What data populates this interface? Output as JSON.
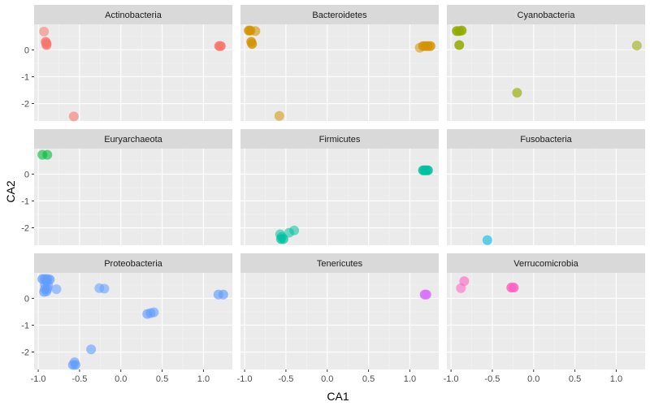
{
  "chart_data": {
    "type": "scatter",
    "facets": true,
    "xlabel": "CA1",
    "ylabel": "CA2",
    "xlim": [
      -1.05,
      1.35
    ],
    "ylim": [
      -2.65,
      0.95
    ],
    "x_ticks": [
      -1.0,
      -0.5,
      0.0,
      0.5,
      1.0
    ],
    "x_tick_labels": [
      "-1.0",
      "-0.5",
      "0.0",
      "0.5",
      "1.0"
    ],
    "y_ticks": [
      -2,
      -1,
      0
    ],
    "y_tick_labels": [
      "-2",
      "-1",
      "0"
    ],
    "grid": true,
    "legend": "none",
    "panels": [
      {
        "name": "Actinobacteria",
        "color": "#F8766D",
        "points": [
          {
            "x": -0.93,
            "y": 0.68,
            "alpha": 0.55
          },
          {
            "x": -0.91,
            "y": 0.3,
            "alpha": 0.8
          },
          {
            "x": -0.9,
            "y": 0.24,
            "alpha": 0.8
          },
          {
            "x": -0.9,
            "y": 0.18,
            "alpha": 0.8
          },
          {
            "x": -0.57,
            "y": -2.48,
            "alpha": 0.6
          },
          {
            "x": 1.19,
            "y": 0.14,
            "alpha": 0.85
          },
          {
            "x": 1.21,
            "y": 0.14,
            "alpha": 0.85
          }
        ]
      },
      {
        "name": "Bacteroidetes",
        "color": "#D39200",
        "points": [
          {
            "x": -0.95,
            "y": 0.72,
            "alpha": 0.8
          },
          {
            "x": -0.93,
            "y": 0.72,
            "alpha": 0.8
          },
          {
            "x": -0.87,
            "y": 0.7,
            "alpha": 0.6
          },
          {
            "x": -0.92,
            "y": 0.3,
            "alpha": 0.8
          },
          {
            "x": -0.91,
            "y": 0.22,
            "alpha": 0.8
          },
          {
            "x": -0.58,
            "y": -2.46,
            "alpha": 0.55
          },
          {
            "x": 1.12,
            "y": 0.08,
            "alpha": 0.55
          },
          {
            "x": 1.16,
            "y": 0.14,
            "alpha": 0.8
          },
          {
            "x": 1.19,
            "y": 0.14,
            "alpha": 0.8
          },
          {
            "x": 1.22,
            "y": 0.14,
            "alpha": 0.8
          },
          {
            "x": 1.25,
            "y": 0.14,
            "alpha": 0.8
          }
        ]
      },
      {
        "name": "Cyanobacteria",
        "color": "#93AA00",
        "points": [
          {
            "x": -0.93,
            "y": 0.7,
            "alpha": 0.85
          },
          {
            "x": -0.9,
            "y": 0.7,
            "alpha": 0.85
          },
          {
            "x": -0.87,
            "y": 0.72,
            "alpha": 0.85
          },
          {
            "x": -0.9,
            "y": 0.18,
            "alpha": 0.85
          },
          {
            "x": -0.2,
            "y": -1.6,
            "alpha": 0.65
          },
          {
            "x": 1.25,
            "y": 0.16,
            "alpha": 0.55
          }
        ]
      },
      {
        "name": "Euryarchaeota",
        "color": "#00BA38",
        "points": [
          {
            "x": -0.95,
            "y": 0.72,
            "alpha": 0.6
          },
          {
            "x": -0.89,
            "y": 0.72,
            "alpha": 0.6
          }
        ]
      },
      {
        "name": "Firmicutes",
        "color": "#00C19F",
        "points": [
          {
            "x": 1.16,
            "y": 0.14,
            "alpha": 0.85
          },
          {
            "x": 1.18,
            "y": 0.14,
            "alpha": 0.85
          },
          {
            "x": 1.2,
            "y": 0.14,
            "alpha": 0.85
          },
          {
            "x": 1.22,
            "y": 0.14,
            "alpha": 0.85
          },
          {
            "x": -0.57,
            "y": -2.24,
            "alpha": 0.55
          },
          {
            "x": -0.55,
            "y": -2.34,
            "alpha": 0.6
          },
          {
            "x": -0.56,
            "y": -2.42,
            "alpha": 0.7
          },
          {
            "x": -0.53,
            "y": -2.42,
            "alpha": 0.7
          },
          {
            "x": -0.46,
            "y": -2.18,
            "alpha": 0.55
          },
          {
            "x": -0.4,
            "y": -2.1,
            "alpha": 0.55
          }
        ]
      },
      {
        "name": "Fusobacteria",
        "color": "#00B9E3",
        "points": [
          {
            "x": -0.56,
            "y": -2.46,
            "alpha": 0.6
          }
        ]
      },
      {
        "name": "Proteobacteria",
        "color": "#619CFF",
        "points": [
          {
            "x": -0.95,
            "y": 0.72,
            "alpha": 0.7
          },
          {
            "x": -0.92,
            "y": 0.72,
            "alpha": 0.7
          },
          {
            "x": -0.89,
            "y": 0.72,
            "alpha": 0.7
          },
          {
            "x": -0.86,
            "y": 0.7,
            "alpha": 0.7
          },
          {
            "x": -0.9,
            "y": 0.64,
            "alpha": 0.6
          },
          {
            "x": -0.92,
            "y": 0.52,
            "alpha": 0.6
          },
          {
            "x": -0.88,
            "y": 0.48,
            "alpha": 0.6
          },
          {
            "x": -0.92,
            "y": 0.35,
            "alpha": 0.65
          },
          {
            "x": -0.89,
            "y": 0.36,
            "alpha": 0.6
          },
          {
            "x": -0.93,
            "y": 0.24,
            "alpha": 0.65
          },
          {
            "x": -0.9,
            "y": 0.26,
            "alpha": 0.65
          },
          {
            "x": -0.78,
            "y": 0.34,
            "alpha": 0.55
          },
          {
            "x": -0.26,
            "y": 0.38,
            "alpha": 0.55
          },
          {
            "x": -0.2,
            "y": 0.36,
            "alpha": 0.55
          },
          {
            "x": 1.18,
            "y": 0.14,
            "alpha": 0.65
          },
          {
            "x": 1.24,
            "y": 0.14,
            "alpha": 0.65
          },
          {
            "x": 0.32,
            "y": -0.58,
            "alpha": 0.65
          },
          {
            "x": 0.36,
            "y": -0.55,
            "alpha": 0.65
          },
          {
            "x": 0.4,
            "y": -0.52,
            "alpha": 0.6
          },
          {
            "x": -0.36,
            "y": -1.9,
            "alpha": 0.6
          },
          {
            "x": -0.56,
            "y": -2.38,
            "alpha": 0.6
          },
          {
            "x": -0.58,
            "y": -2.48,
            "alpha": 0.7
          },
          {
            "x": -0.55,
            "y": -2.48,
            "alpha": 0.7
          }
        ]
      },
      {
        "name": "Tenericutes",
        "color": "#DB72FB",
        "points": [
          {
            "x": 1.18,
            "y": 0.14,
            "alpha": 0.9
          },
          {
            "x": 1.2,
            "y": 0.14,
            "alpha": 0.9
          }
        ]
      },
      {
        "name": "Verrucomicrobia",
        "color": "#FF61C3",
        "points": [
          {
            "x": -0.88,
            "y": 0.38,
            "alpha": 0.55
          },
          {
            "x": -0.84,
            "y": 0.64,
            "alpha": 0.6
          },
          {
            "x": -0.27,
            "y": 0.4,
            "alpha": 0.85
          },
          {
            "x": -0.24,
            "y": 0.4,
            "alpha": 0.85
          }
        ]
      }
    ]
  }
}
